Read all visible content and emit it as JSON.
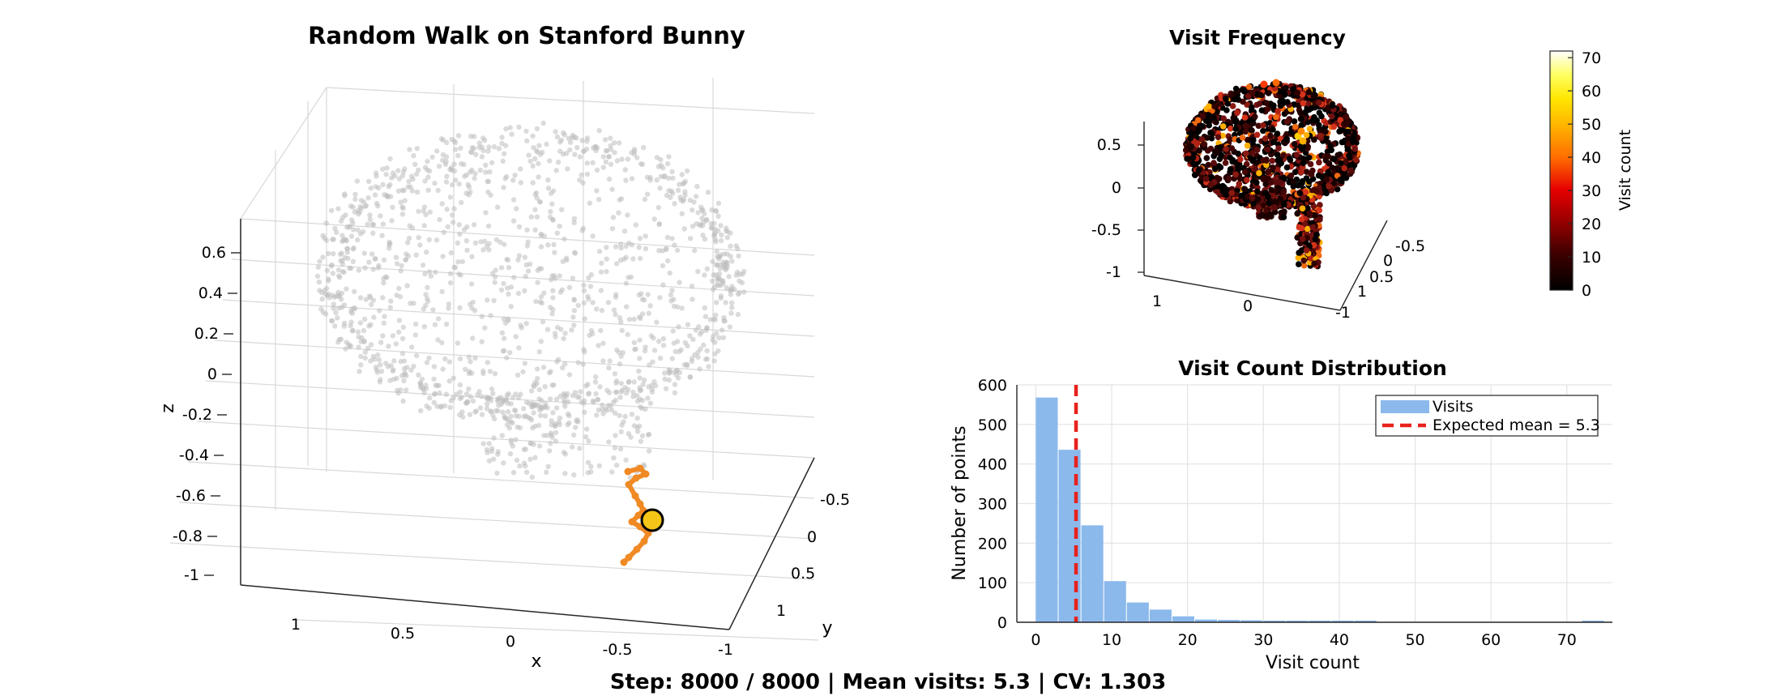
{
  "figure": {
    "footer": "Step: 8000 / 8000  |  Mean visits: 5.3  |  CV: 1.303"
  },
  "walk3d": {
    "title": "Random Walk on Stanford Bunny",
    "xlabel": "x",
    "ylabel": "y",
    "zlabel": "z",
    "z_ticks": [
      "0.6",
      "0.4",
      "0.2",
      "0",
      "-0.2",
      "-0.4",
      "-0.6",
      "-0.8",
      "-1"
    ],
    "x_ticks": [
      "1",
      "0.5",
      "0",
      "-0.5"
    ],
    "y_ticks": [
      "-0.5",
      "0",
      "0.5",
      "1",
      "-1"
    ],
    "colors": {
      "points": "#bdbdbd",
      "walk": "#f08a24",
      "current": "#f5c518"
    }
  },
  "heatmap3d": {
    "title": "Visit Frequency",
    "z_ticks": [
      "0.5",
      "0",
      "-0.5",
      "-1"
    ],
    "x_ticks": [
      "1",
      "0"
    ],
    "y_ticks": [
      "-0.5",
      "0",
      "0.5",
      "1",
      "-1"
    ],
    "colorbar": {
      "label": "Visit count",
      "ticks": [
        "70",
        "60",
        "50",
        "40",
        "30",
        "20",
        "10",
        "0"
      ],
      "min": 0,
      "max": 72
    }
  },
  "chart_data": {
    "type": "bar",
    "title": "Visit Count Distribution",
    "xlabel": "Visit count",
    "ylabel": "Number of points",
    "xlim": [
      -2.5,
      76
    ],
    "ylim": [
      0,
      600
    ],
    "x_ticks": [
      0,
      10,
      20,
      30,
      40,
      50,
      60,
      70
    ],
    "y_ticks": [
      0,
      100,
      200,
      300,
      400,
      500,
      600
    ],
    "bin_width": 3,
    "bin_starts": [
      0,
      3,
      6,
      9,
      12,
      15,
      18,
      21,
      24,
      27,
      30,
      33,
      36,
      39,
      42,
      45,
      48,
      51,
      54,
      57,
      60,
      63,
      66,
      69,
      72
    ],
    "values": [
      568,
      436,
      245,
      104,
      50,
      32,
      15,
      7,
      6,
      5,
      4,
      3,
      1,
      2,
      1,
      0,
      0,
      0,
      0,
      0,
      0,
      0,
      0,
      0,
      2
    ],
    "series_name": "Visits",
    "expected_mean": 5.3,
    "mean_label": "Expected mean = 5.3",
    "legend_position": "top-right",
    "grid": true,
    "colors": {
      "bars": "#8bb9ec",
      "mean_line": "#e8211c"
    }
  }
}
